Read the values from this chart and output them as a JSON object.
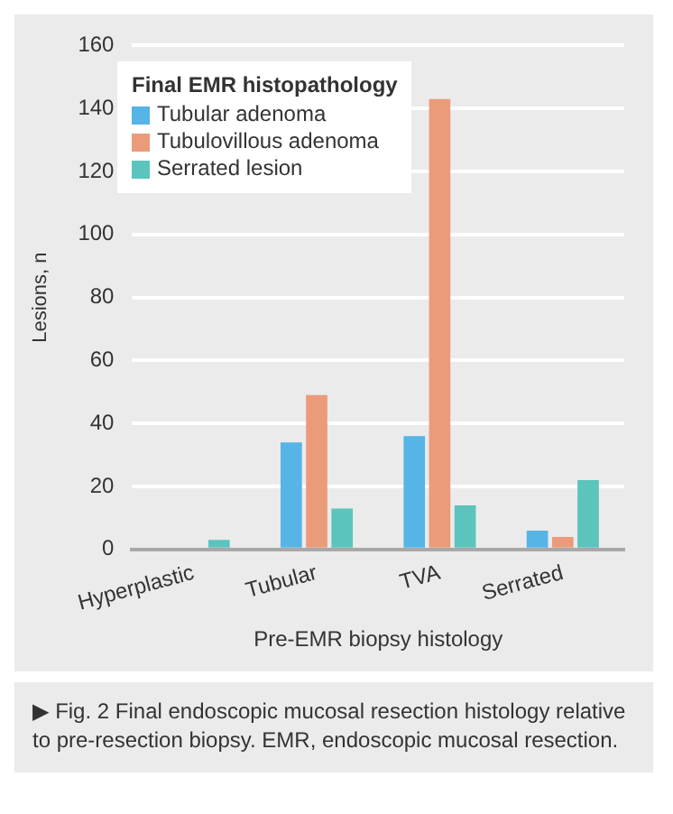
{
  "chart_data": {
    "type": "bar",
    "xlabel": "Pre-EMR biopsy histology",
    "ylabel": "Lesions, n",
    "legend_title": "Final EMR histopathology",
    "categories": [
      "Hyperplastic",
      "Tubular",
      "TVA",
      "Serrated"
    ],
    "series": [
      {
        "name": "Tubular adenoma",
        "color": "#56b4e6",
        "values": [
          0,
          34,
          36,
          6
        ]
      },
      {
        "name": "Tubulovillous adenoma",
        "color": "#ea9c7a",
        "values": [
          0,
          49,
          143,
          4
        ]
      },
      {
        "name": "Serrated lesion",
        "color": "#5bc4bc",
        "values": [
          3,
          13,
          14,
          22
        ]
      }
    ],
    "ylim": [
      0,
      160
    ],
    "yticks": [
      0,
      20,
      40,
      60,
      80,
      100,
      120,
      140,
      160
    ],
    "grid": "y",
    "legend": "top left",
    "annotations": [
      "▶ Fig. 2 Final endoscopic mucosal resection histology relative to pre-resection biopsy. EMR, endoscopic mucosal resection."
    ]
  }
}
